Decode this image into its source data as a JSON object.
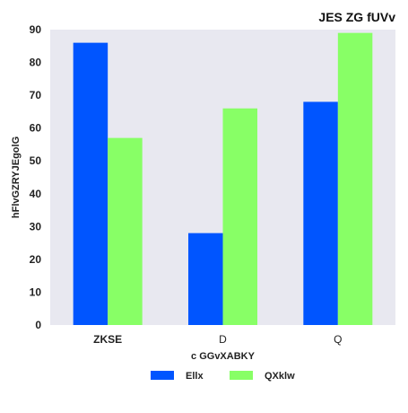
{
  "chart_data": {
    "type": "bar",
    "title": "JES  ZG fUVv",
    "xlabel": "c GGvXABKY",
    "ylabel": "hFlvGZRYJEgolG",
    "categories": [
      "ZKSE",
      "D",
      "Q"
    ],
    "series": [
      {
        "name": "Ellx",
        "color": "#0055ff",
        "values": [
          86,
          28,
          68
        ]
      },
      {
        "name": "QXklw",
        "color": "#88ff66",
        "values": [
          57,
          66,
          89
        ]
      }
    ],
    "ylim": [
      0,
      90
    ],
    "yticks": [
      0,
      10,
      20,
      30,
      40,
      50,
      60,
      70,
      80,
      90
    ],
    "grid": false,
    "plot_background": "#e8e8f0",
    "legend_position": "bottom-center"
  }
}
